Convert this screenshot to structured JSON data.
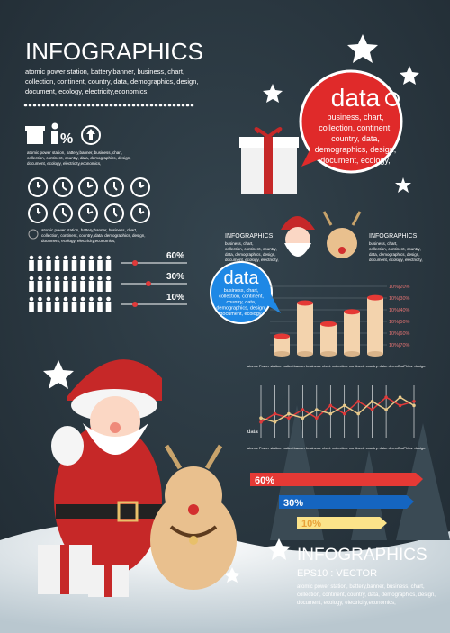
{
  "header": {
    "title": "INFOGRAPHICS",
    "subtitle": [
      "atomic power station, battery,banner, business, chart,",
      "collection, continent, country, data, demographics, design,",
      "document, ecology, electricity,economics,"
    ]
  },
  "icons": {
    "percent": "%",
    "note": [
      "atomic power station, battery,banner, business, chart,",
      "collection, continent, country, data, demographics, design,",
      "document, ecology, electricity,economics,"
    ]
  },
  "clocks": {
    "note": [
      "atomic power station, battery,banner, business, chart,",
      "collection, continent, country, data, demographics, design,",
      "document, ecology, electricity,economics,"
    ]
  },
  "sliders": [
    "60%",
    "30%",
    "10%"
  ],
  "red_bubble": {
    "title": "data",
    "lines": [
      "business, chart,",
      "collection, continent,",
      "country, data,",
      "demographics, design,",
      "document, ecology,"
    ]
  },
  "santa_head": {
    "title": "INFOGRAPHICS",
    "lines": [
      "business, chart,",
      "collection, continent, country,",
      "data, demographics, design,",
      "document, ecology, electricity,"
    ]
  },
  "reindeer_head": {
    "title": "INFOGRAPHICS",
    "lines": [
      "business, chart,",
      "collection, continent, country,",
      "data, demographics, design,",
      "document, ecology, electricity,"
    ]
  },
  "blue_bubble": {
    "title": "data",
    "lines": [
      "business, chart,",
      "collection, continent,",
      "country, data,",
      "demographics, design,",
      "document, ecology,"
    ]
  },
  "bar_chart": {
    "values": [
      20,
      58,
      34,
      48,
      64
    ],
    "ylim": [
      0,
      80
    ],
    "axis_labels": [
      "10%|20%",
      "10%|30%",
      "10%|40%",
      "10%|50%",
      "10%|60%",
      "10%|70%"
    ],
    "caption": "atomic Power station. batteri.banner business. chart. collection. continent. country. data. demoGraPhics. design."
  },
  "line_chart": {
    "label": "data",
    "ylim": [
      0,
      10
    ],
    "series": [
      {
        "color": "#e03a3a",
        "values": [
          2,
          4,
          3,
          5,
          3,
          6,
          4,
          7,
          5,
          8,
          6,
          7
        ]
      },
      {
        "color": "#e8c98a",
        "values": [
          3,
          2,
          4,
          3,
          5,
          4,
          6,
          4,
          7,
          5,
          8,
          6
        ]
      }
    ],
    "caption": "atomic Power station. batteri.banner business. chart. collection. continent. country. data. demoGraPhics. design."
  },
  "ribbons": [
    "60%",
    "30%",
    "10%"
  ],
  "footer": {
    "title": "INFOGRAPHICS",
    "subtitle": "EPS10 : VECTOR",
    "lines": [
      "atomic power station, battery,banner, business, chart,",
      "collection, continent, country, data, demographics, design,",
      "document, ecology, electricity,economics,"
    ]
  }
}
